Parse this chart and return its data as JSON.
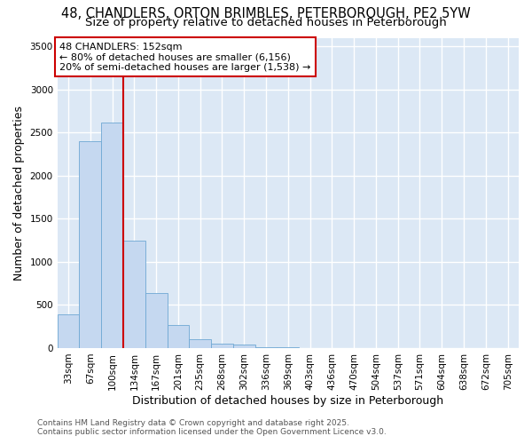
{
  "title_line1": "48, CHANDLERS, ORTON BRIMBLES, PETERBOROUGH, PE2 5YW",
  "title_line2": "Size of property relative to detached houses in Peterborough",
  "xlabel": "Distribution of detached houses by size in Peterborough",
  "ylabel": "Number of detached properties",
  "categories": [
    "33sqm",
    "67sqm",
    "100sqm",
    "134sqm",
    "167sqm",
    "201sqm",
    "235sqm",
    "268sqm",
    "302sqm",
    "336sqm",
    "369sqm",
    "403sqm",
    "436sqm",
    "470sqm",
    "504sqm",
    "537sqm",
    "571sqm",
    "604sqm",
    "638sqm",
    "672sqm",
    "705sqm"
  ],
  "values": [
    390,
    2400,
    2620,
    1250,
    640,
    265,
    105,
    55,
    40,
    10,
    5,
    3,
    2,
    1,
    1,
    1,
    1,
    1,
    1,
    1,
    1
  ],
  "bar_color": "#c5d8f0",
  "bar_edge_color": "#6fa8d4",
  "vline_color": "#cc0000",
  "annotation_text": "48 CHANDLERS: 152sqm\n← 80% of detached houses are smaller (6,156)\n20% of semi-detached houses are larger (1,538) →",
  "annotation_box_color": "#ffffff",
  "annotation_box_edge_color": "#cc0000",
  "ylim": [
    0,
    3600
  ],
  "yticks": [
    0,
    500,
    1000,
    1500,
    2000,
    2500,
    3000,
    3500
  ],
  "background_color": "#dce8f5",
  "grid_color": "#ffffff",
  "fig_background": "#ffffff",
  "footer_line1": "Contains HM Land Registry data © Crown copyright and database right 2025.",
  "footer_line2": "Contains public sector information licensed under the Open Government Licence v3.0.",
  "title_fontsize": 10.5,
  "subtitle_fontsize": 9.5,
  "axis_label_fontsize": 9,
  "tick_fontsize": 7.5,
  "annotation_fontsize": 8,
  "footer_fontsize": 6.5
}
